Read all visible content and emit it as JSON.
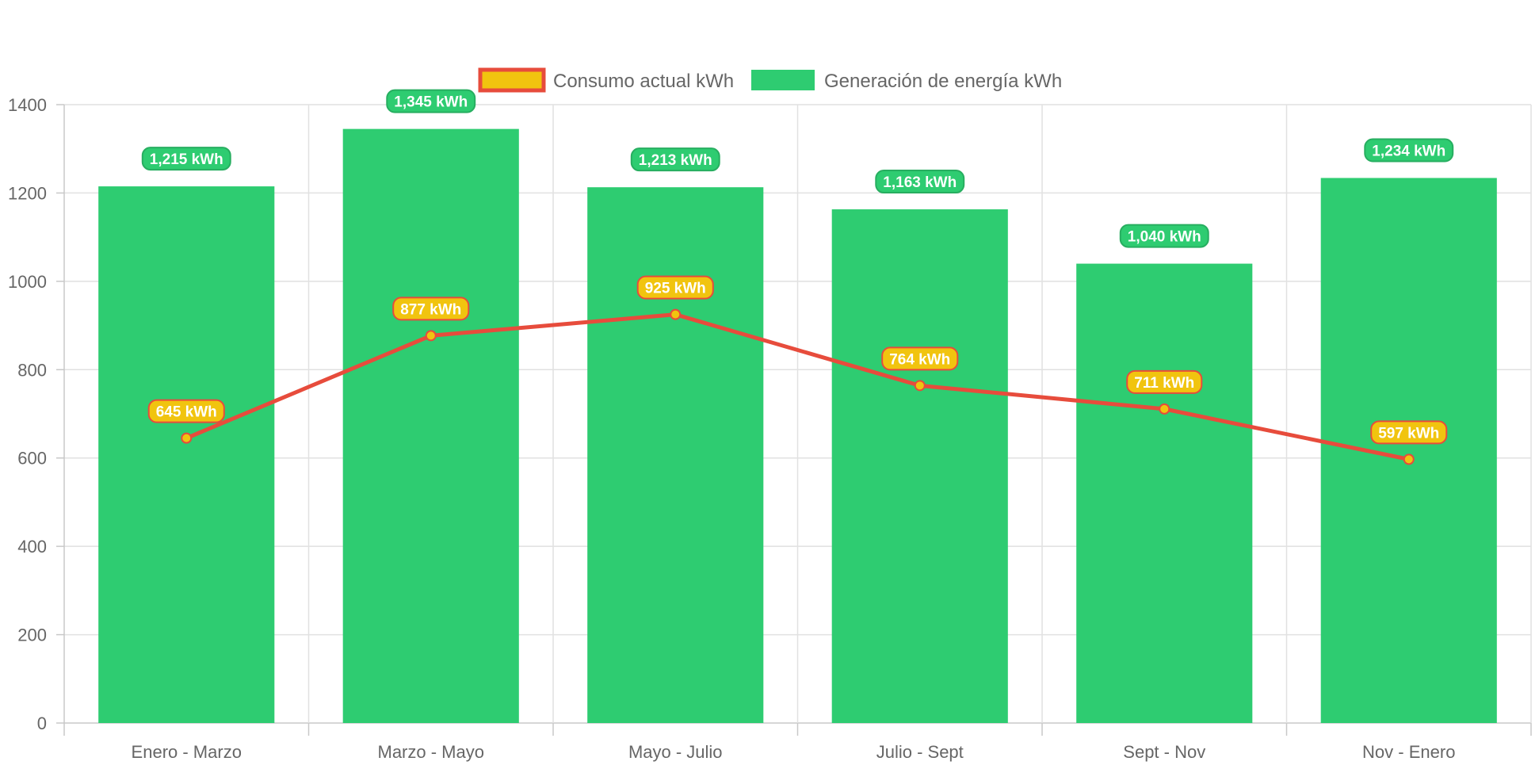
{
  "chart_data": {
    "type": "bar",
    "categories": [
      "Enero - Marzo",
      "Marzo - Mayo",
      "Mayo - Julio",
      "Julio - Sept",
      "Sept - Nov",
      "Nov - Enero"
    ],
    "series": [
      {
        "name": "Consumo actual kWh",
        "type": "line",
        "values": [
          645,
          877,
          925,
          764,
          711,
          597
        ],
        "labels": [
          "645 kWh",
          "877 kWh",
          "925 kWh",
          "764 kWh",
          "711 kWh",
          "597 kWh"
        ],
        "color": "#e74c3c",
        "fill_color": "#f1c40f"
      },
      {
        "name": "Generación de energía kWh",
        "type": "bar",
        "values": [
          1215,
          1345,
          1213,
          1163,
          1040,
          1234
        ],
        "labels": [
          "1,215 kWh",
          "1,345 kWh",
          "1,213 kWh",
          "1,163 kWh",
          "1,040 kWh",
          "1,234 kWh"
        ],
        "color": "#2ecc71",
        "label_border": "#27ae60"
      }
    ],
    "y_ticks": [
      "0",
      "200",
      "400",
      "600",
      "800",
      "1000",
      "1200",
      "1400"
    ],
    "ylim": [
      0,
      1400
    ],
    "grid": true,
    "legend_position": "top-center"
  }
}
